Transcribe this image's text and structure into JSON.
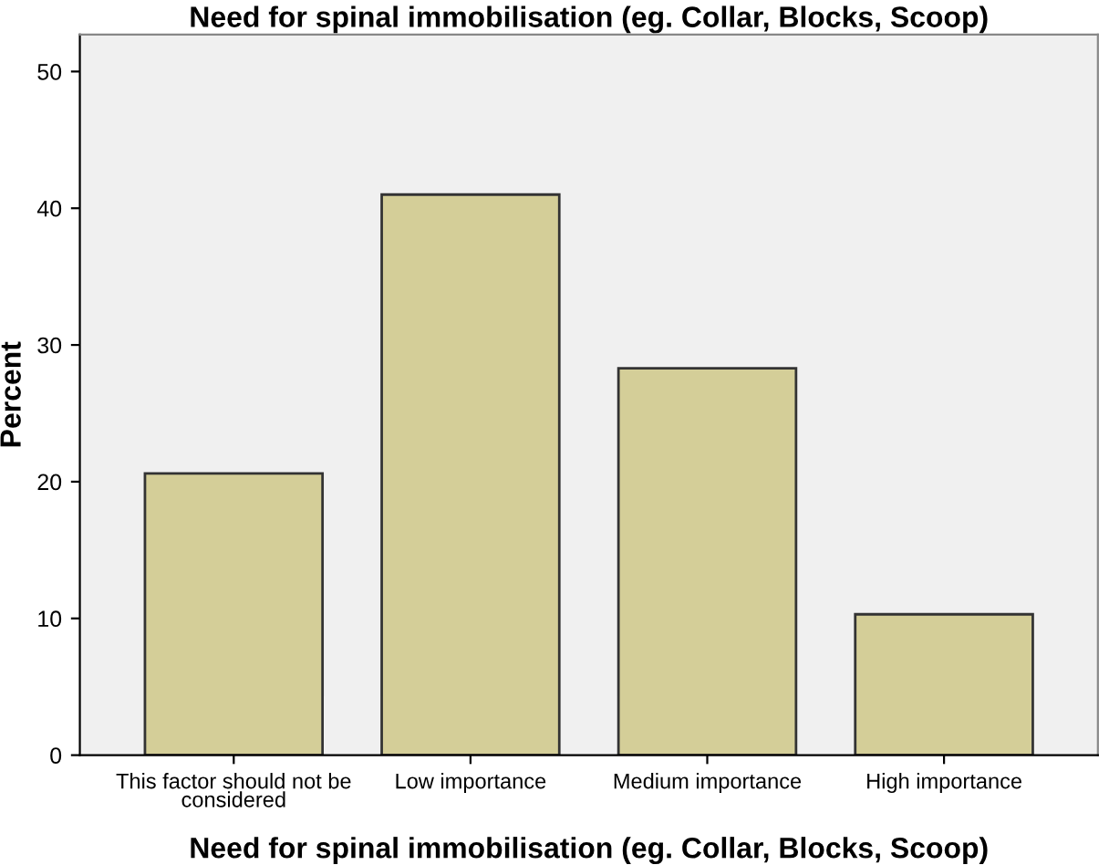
{
  "chart_data": {
    "type": "bar",
    "title": "Need for spinal immobilisation (eg. Collar, Blocks, Scoop)",
    "xlabel": "Need for spinal immobilisation (eg. Collar, Blocks, Scoop)",
    "ylabel": "Percent",
    "categories": [
      "This factor should not be\nconsidered",
      "Low importance",
      "Medium importance",
      "High importance"
    ],
    "values": [
      20.6,
      41.0,
      28.3,
      10.3
    ],
    "color": "#d4ce98",
    "ylim": [
      0,
      52.7
    ],
    "yticks": [
      0,
      10,
      20,
      30,
      40,
      50
    ],
    "grid": false
  }
}
